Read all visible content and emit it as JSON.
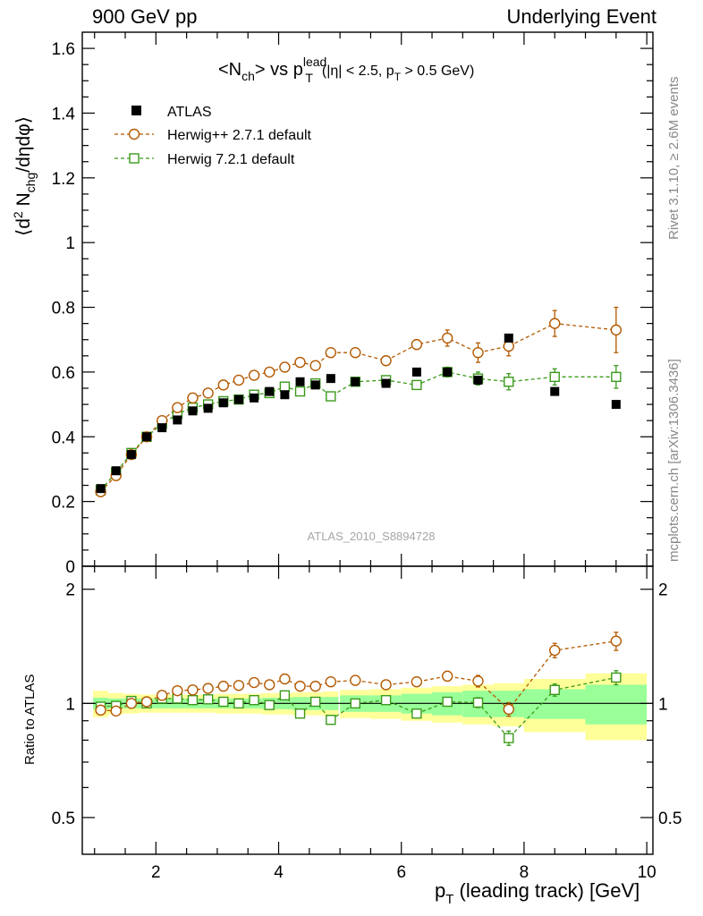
{
  "header": {
    "left": "900 GeV pp",
    "right": "Underlying Event"
  },
  "side_notes": {
    "rivet": "Rivet 3.1.10, ≥ 2.6M events",
    "mcplots": "mcplots.cern.ch [arXiv:1306.3436]"
  },
  "watermark": "ATLAS_2010_S8894728",
  "title": {
    "main": "<N",
    "main_sub": "ch",
    "main_mid": "> vs p",
    "main_sup": "lead",
    "main_sub2": "T",
    "cut_a": "(|η| < 2.5, p",
    "cut_sub": "T",
    "cut_b": " > 0.5 GeV)"
  },
  "ylabel_main": {
    "a": "⟨d",
    "sup": "2",
    "b": " N",
    "sub": "chg",
    "c": "/dηdφ⟩"
  },
  "ylabel_ratio": "Ratio to ATLAS",
  "xlabel": {
    "a": "p",
    "sub": "T",
    "b": " (leading track) [GeV]"
  },
  "legend": [
    {
      "label": "ATLAS",
      "color": "#000000",
      "marker": "filled-square"
    },
    {
      "label": "Herwig++ 2.7.1 default",
      "color": "#b35900",
      "marker": "open-circle"
    },
    {
      "label": "Herwig 7.2.1 default",
      "color": "#3a9a1a",
      "marker": "open-square"
    }
  ],
  "chart_data": {
    "type": "scatter",
    "x": [
      1.1,
      1.35,
      1.6,
      1.85,
      2.1,
      2.35,
      2.6,
      2.85,
      3.1,
      3.35,
      3.6,
      3.85,
      4.1,
      4.35,
      4.6,
      4.85,
      5.25,
      5.75,
      6.25,
      6.75,
      7.25,
      7.75,
      8.5,
      9.5
    ],
    "x_halfwidth": [
      0.125,
      0.125,
      0.125,
      0.125,
      0.125,
      0.125,
      0.125,
      0.125,
      0.125,
      0.125,
      0.125,
      0.125,
      0.125,
      0.125,
      0.125,
      0.125,
      0.25,
      0.25,
      0.25,
      0.25,
      0.25,
      0.25,
      0.5,
      0.5
    ],
    "series": [
      {
        "name": "ATLAS",
        "values": [
          0.24,
          0.295,
          0.345,
          0.4,
          0.428,
          0.452,
          0.48,
          0.488,
          0.505,
          0.515,
          0.52,
          0.54,
          0.53,
          0.57,
          0.56,
          0.58,
          0.57,
          0.565,
          0.6,
          0.6,
          0.575,
          0.705,
          0.54,
          0.5
        ]
      },
      {
        "name": "Herwig++ 2.7.1 default",
        "values": [
          0.23,
          0.28,
          0.345,
          0.4,
          0.45,
          0.49,
          0.52,
          0.535,
          0.56,
          0.575,
          0.59,
          0.6,
          0.615,
          0.63,
          0.62,
          0.66,
          0.66,
          0.635,
          0.685,
          0.705,
          0.66,
          0.68,
          0.75,
          0.73
        ],
        "errors": [
          0.003,
          0.003,
          0.003,
          0.003,
          0.004,
          0.004,
          0.004,
          0.004,
          0.005,
          0.005,
          0.005,
          0.006,
          0.006,
          0.007,
          0.007,
          0.008,
          0.008,
          0.01,
          0.015,
          0.025,
          0.03,
          0.03,
          0.04,
          0.07
        ]
      },
      {
        "name": "Herwig 7.2.1 default",
        "values": [
          0.235,
          0.29,
          0.35,
          0.4,
          0.44,
          0.47,
          0.49,
          0.5,
          0.51,
          0.515,
          0.53,
          0.535,
          0.555,
          0.54,
          0.565,
          0.525,
          0.57,
          0.575,
          0.56,
          0.6,
          0.58,
          0.57,
          0.585,
          0.585
        ],
        "errors": [
          0.003,
          0.003,
          0.003,
          0.003,
          0.004,
          0.004,
          0.004,
          0.004,
          0.005,
          0.005,
          0.005,
          0.006,
          0.006,
          0.007,
          0.007,
          0.008,
          0.008,
          0.01,
          0.012,
          0.015,
          0.02,
          0.025,
          0.025,
          0.035
        ]
      }
    ],
    "ratio": {
      "herwigpp": [
        0.96,
        0.955,
        1.0,
        1.01,
        1.05,
        1.08,
        1.085,
        1.095,
        1.11,
        1.115,
        1.135,
        1.12,
        1.16,
        1.11,
        1.11,
        1.14,
        1.15,
        1.12,
        1.14,
        1.18,
        1.145,
        0.965,
        1.38,
        1.46
      ],
      "herwigpp_err": [
        0.005,
        0.005,
        0.005,
        0.005,
        0.005,
        0.005,
        0.005,
        0.005,
        0.006,
        0.006,
        0.006,
        0.007,
        0.007,
        0.008,
        0.008,
        0.01,
        0.012,
        0.015,
        0.02,
        0.035,
        0.04,
        0.04,
        0.06,
        0.08
      ],
      "herwig7": [
        0.98,
        0.985,
        1.015,
        1.0,
        1.03,
        1.03,
        1.02,
        1.025,
        1.01,
        1.0,
        1.02,
        0.99,
        1.05,
        0.94,
        1.01,
        0.905,
        1.0,
        1.02,
        0.94,
        1.01,
        1.005,
        0.81,
        1.085,
        1.17
      ],
      "herwig7_err": [
        0.005,
        0.005,
        0.005,
        0.005,
        0.005,
        0.005,
        0.005,
        0.005,
        0.006,
        0.006,
        0.006,
        0.007,
        0.007,
        0.008,
        0.008,
        0.01,
        0.012,
        0.015,
        0.02,
        0.025,
        0.03,
        0.035,
        0.04,
        0.05
      ],
      "band_green_halfwidth": [
        0.035,
        0.03,
        0.03,
        0.03,
        0.03,
        0.03,
        0.03,
        0.03,
        0.03,
        0.03,
        0.03,
        0.035,
        0.035,
        0.04,
        0.04,
        0.04,
        0.05,
        0.05,
        0.06,
        0.07,
        0.08,
        0.08,
        0.09,
        0.12
      ],
      "band_yellow_halfwidth": [
        0.08,
        0.065,
        0.06,
        0.055,
        0.055,
        0.055,
        0.055,
        0.055,
        0.06,
        0.06,
        0.06,
        0.065,
        0.065,
        0.07,
        0.07,
        0.075,
        0.085,
        0.09,
        0.1,
        0.11,
        0.12,
        0.13,
        0.16,
        0.2
      ],
      "ylim": [
        0.4,
        2.3
      ],
      "ticks": [
        "2",
        "1",
        "0.5"
      ],
      "tick_values": [
        2,
        1,
        0.5
      ]
    },
    "xlim": [
      0.8,
      10.1
    ],
    "xticks": [
      "2",
      "4",
      "6",
      "8",
      "10"
    ],
    "xtick_values": [
      2,
      4,
      6,
      8,
      10
    ],
    "ylim": [
      0,
      1.65
    ],
    "yticks": [
      "0",
      "0.2",
      "0.4",
      "0.6",
      "0.8",
      "1",
      "1.2",
      "1.4",
      "1.6"
    ],
    "ytick_values": [
      0,
      0.2,
      0.4,
      0.6,
      0.8,
      1.0,
      1.2,
      1.4,
      1.6
    ],
    "grid": false,
    "legend_position": "top-left"
  }
}
